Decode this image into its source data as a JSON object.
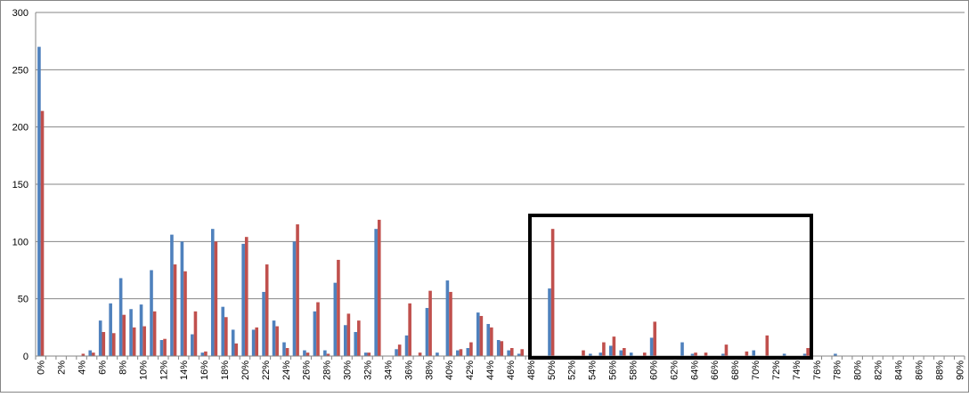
{
  "chart_data": {
    "type": "bar",
    "categories": [
      "0%",
      null,
      "2%",
      null,
      "4%",
      null,
      "6%",
      null,
      "8%",
      null,
      "10%",
      null,
      "12%",
      null,
      "14%",
      null,
      "16%",
      null,
      "18%",
      null,
      "20%",
      null,
      "22%",
      null,
      "24%",
      null,
      "26%",
      null,
      "28%",
      null,
      "30%",
      null,
      "32%",
      null,
      "34%",
      null,
      "36%",
      null,
      "38%",
      null,
      "40%",
      null,
      "42%",
      null,
      "44%",
      null,
      "46%",
      null,
      "48%",
      null,
      "50%",
      null,
      "52%",
      null,
      "54%",
      null,
      "56%",
      null,
      "58%",
      null,
      "60%",
      null,
      "62%",
      null,
      "64%",
      null,
      "66%",
      null,
      "68%",
      null,
      "70%",
      null,
      "72%",
      null,
      "74%",
      null,
      "76%",
      null,
      "78%",
      null,
      "80%",
      null,
      "82%",
      null,
      "84%",
      null,
      "86%",
      null,
      "88%",
      null,
      "90%"
    ],
    "series": [
      {
        "color": "#4f81bd",
        "values": [
          270,
          0,
          0,
          0,
          0,
          5,
          31,
          46,
          68,
          41,
          45,
          75,
          14,
          106,
          100,
          19,
          3,
          111,
          43,
          23,
          98,
          23,
          56,
          31,
          12,
          100,
          5,
          39,
          5,
          64,
          27,
          21,
          3,
          111,
          0,
          6,
          18,
          0,
          42,
          3,
          66,
          5,
          7,
          38,
          28,
          14,
          5,
          2,
          0,
          0,
          59,
          0,
          0,
          0,
          2,
          3,
          9,
          5,
          3,
          0,
          16,
          0,
          0,
          12,
          2,
          0,
          0,
          2,
          0,
          0,
          5,
          0,
          0,
          2,
          0,
          2,
          0,
          0,
          2,
          0,
          0,
          0,
          0,
          0,
          0,
          0,
          0,
          0,
          0,
          0,
          0
        ]
      },
      {
        "color": "#c0504d",
        "values": [
          214,
          0,
          0,
          0,
          2,
          3,
          21,
          20,
          36,
          25,
          26,
          39,
          15,
          80,
          74,
          39,
          4,
          100,
          34,
          11,
          104,
          25,
          80,
          26,
          7,
          115,
          3,
          47,
          2,
          84,
          37,
          31,
          3,
          119,
          0,
          10,
          46,
          3,
          57,
          0,
          56,
          6,
          12,
          35,
          25,
          13,
          7,
          6,
          0,
          0,
          111,
          0,
          0,
          5,
          0,
          12,
          17,
          7,
          0,
          3,
          30,
          0,
          0,
          0,
          3,
          3,
          0,
          10,
          0,
          4,
          0,
          18,
          0,
          0,
          0,
          7,
          0,
          0,
          0,
          0,
          0,
          0,
          0,
          0,
          0,
          0,
          0,
          0,
          0,
          0,
          0
        ]
      }
    ],
    "ylim": [
      0,
      300
    ],
    "yticks": [
      0,
      50,
      100,
      150,
      200,
      250,
      300
    ],
    "grid": true
  }
}
